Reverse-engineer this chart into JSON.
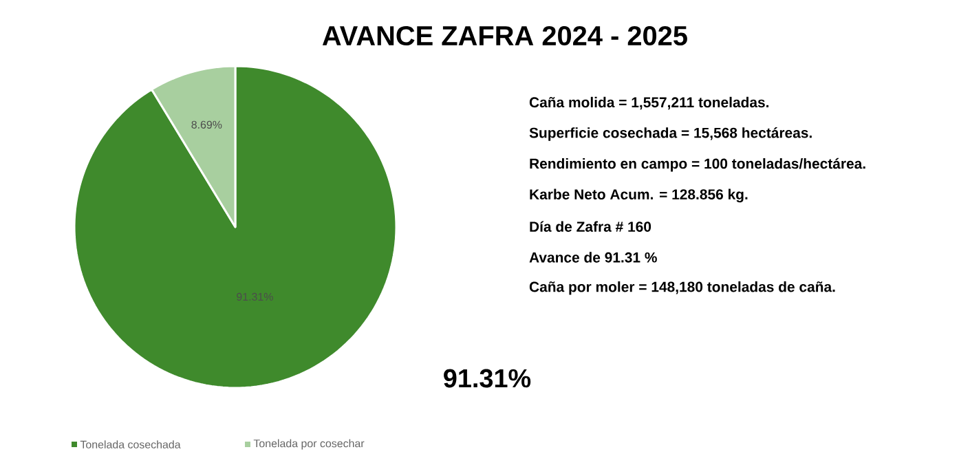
{
  "chart_data": {
    "type": "pie",
    "title": "AVANCE ZAFRA 2024 - 2025",
    "categories": [
      "Tonelada cosechada",
      "Tonelada por cosechar"
    ],
    "values": [
      91.31,
      8.69
    ],
    "colors": [
      "#3f8a2c",
      "#a8cf9f"
    ],
    "value_labels": [
      "91.31%",
      "8.69%"
    ],
    "legend": "bottom",
    "annotations": [
      "Caña molida = 1,557,211 toneladas.",
      "Superficie cosechada = 15,568 hectáreas.",
      "Rendimiento en campo = 100 toneladas/hectárea.",
      "Karbe Neto Acum. = 128.856 kg.",
      "Día de Zafra # 160",
      "Avance de 91.31 %",
      "Caña por moler = 148,180 toneladas de caña.",
      "91.31%"
    ]
  }
}
